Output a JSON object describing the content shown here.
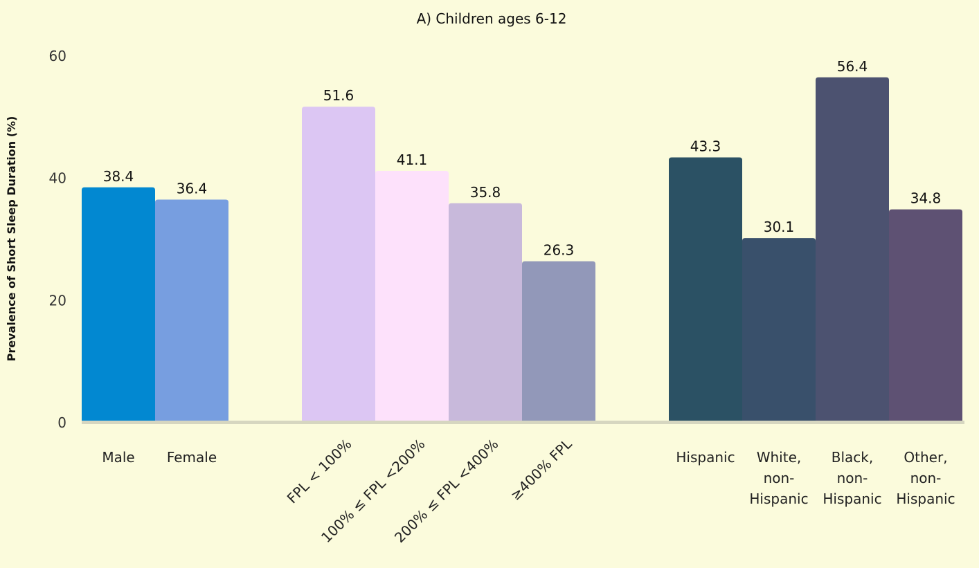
{
  "chart_data": {
    "type": "bar",
    "title": "A) Children ages 6-12",
    "ylabel": "Prevalence of Short Sleep Duration (%)",
    "xlabel": "",
    "ylim": [
      0,
      60
    ],
    "yticks": [
      0,
      20,
      40,
      60
    ],
    "grid": false,
    "legend": "none",
    "groups": [
      {
        "bars": [
          {
            "category": "Male",
            "value": 38.4,
            "color": "#0288d1"
          },
          {
            "category": "Female",
            "value": 36.4,
            "color": "#779ee0"
          }
        ]
      },
      {
        "bars": [
          {
            "category": "FPL < 100%",
            "value": 51.6,
            "color": "#dcc6f3"
          },
          {
            "category": "100% ≤ FPL <200%",
            "value": 41.1,
            "color": "#fde1fb"
          },
          {
            "category": "200% ≤ FPL <400%",
            "value": 35.8,
            "color": "#c8b9db"
          },
          {
            "category": "≥400% FPL",
            "value": 26.3,
            "color": "#9298b9"
          }
        ]
      },
      {
        "bars": [
          {
            "category": "Hispanic",
            "value": 43.3,
            "color": "#2b5164"
          },
          {
            "category": "White, non-Hispanic",
            "value": 30.1,
            "color": "#39506b"
          },
          {
            "category": "Black, non-Hispanic",
            "value": 56.4,
            "color": "#4c5270"
          },
          {
            "category": "Other, non-Hispanic",
            "value": 34.8,
            "color": "#5e5173"
          }
        ]
      }
    ]
  }
}
